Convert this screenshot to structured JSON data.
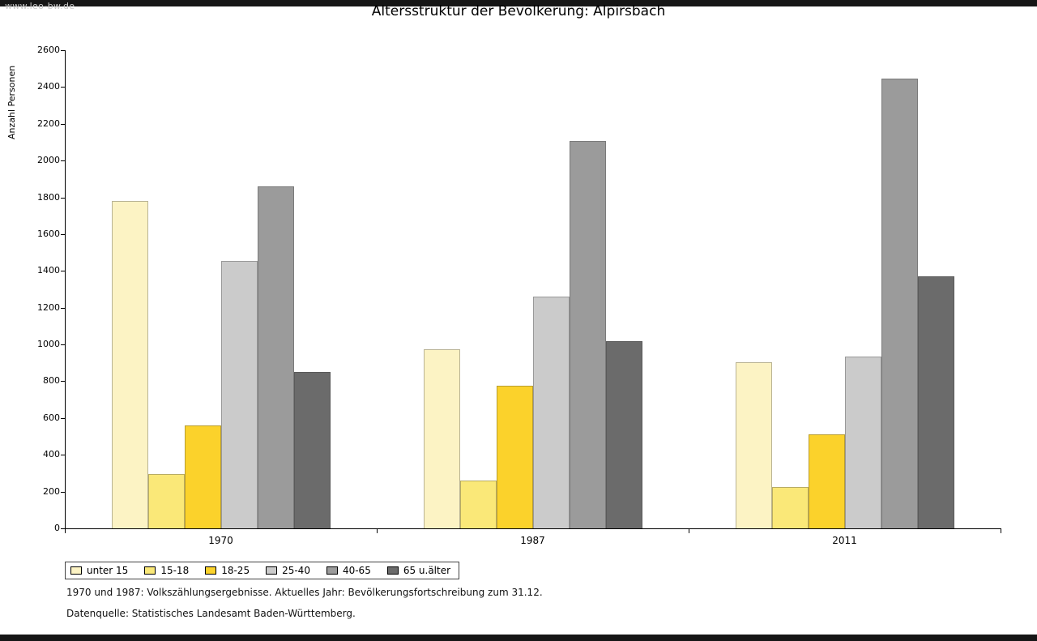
{
  "watermark": "www.leo-bw.de",
  "title": "Altersstruktur der Bevölkerung: Alpirsbach",
  "footnotes": {
    "line1": "1970 und 1987: Volkszählungsergebnisse. Aktuelles Jahr: Bevölkerungsfortschreibung zum 31.12.",
    "line2": "Datenquelle: Statistisches Landesamt Baden-Württemberg."
  },
  "chart_data": {
    "type": "bar",
    "title": "Altersstruktur der Bevölkerung: Alpirsbach",
    "xlabel": "",
    "ylabel": "Anzahl Personen",
    "ylim": [
      0,
      2600
    ],
    "ytick_step": 200,
    "grid": false,
    "legend_position": "bottom-left",
    "categories": [
      "1970",
      "1987",
      "2011"
    ],
    "series": [
      {
        "name": "unter 15",
        "color": "#FCF3C4",
        "values": [
          1780,
          975,
          905
        ]
      },
      {
        "name": "15-18",
        "color": "#FAE878",
        "values": [
          295,
          260,
          225
        ]
      },
      {
        "name": "18-25",
        "color": "#FBD22B",
        "values": [
          560,
          775,
          510
        ]
      },
      {
        "name": "25-40",
        "color": "#CBCBCB",
        "values": [
          1455,
          1260,
          935
        ]
      },
      {
        "name": "40-65",
        "color": "#9B9B9B",
        "values": [
          1860,
          2105,
          2445
        ]
      },
      {
        "name": "65 u.älter",
        "color": "#6B6B6B",
        "values": [
          850,
          1020,
          1370
        ]
      }
    ]
  }
}
